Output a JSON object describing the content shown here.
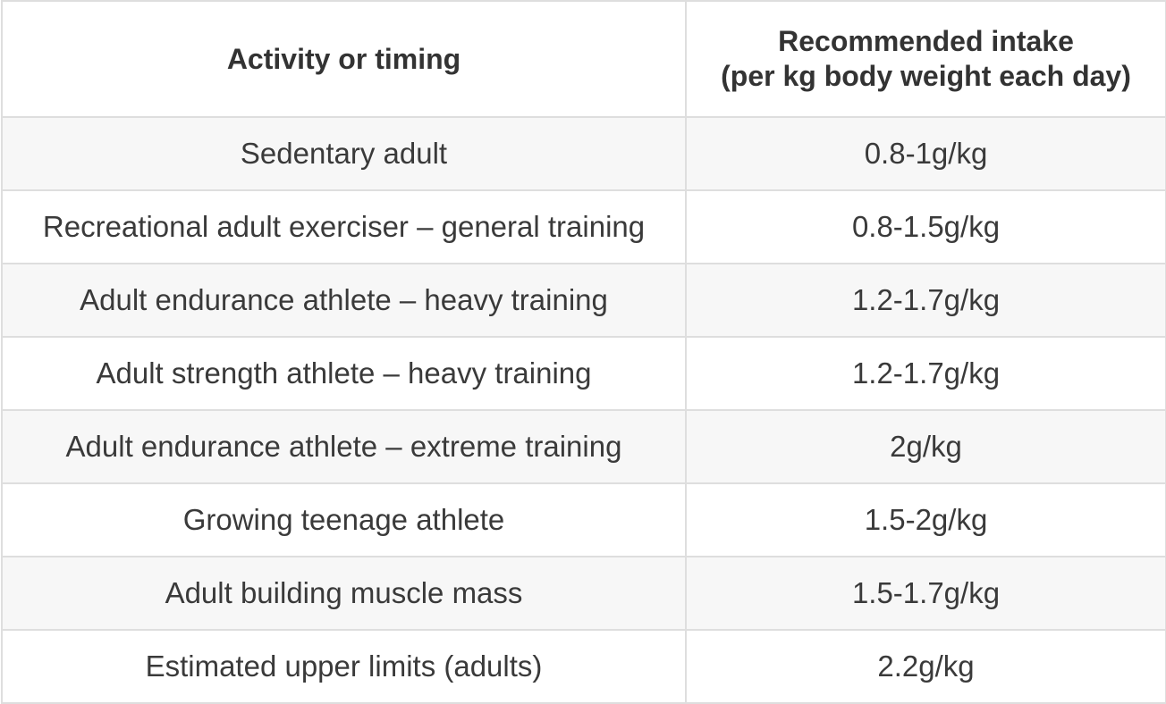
{
  "table": {
    "headers": {
      "activity": "Activity or timing",
      "intake_line1": "Recommended intake",
      "intake_line2": "(per kg body weight each day)"
    },
    "rows": [
      {
        "activity": "Sedentary adult",
        "intake": "0.8-1g/kg"
      },
      {
        "activity": "Recreational adult exerciser – general training",
        "intake": "0.8-1.5g/kg"
      },
      {
        "activity": "Adult endurance athlete – heavy training",
        "intake": "1.2-1.7g/kg"
      },
      {
        "activity": "Adult strength athlete – heavy training",
        "intake": "1.2-1.7g/kg"
      },
      {
        "activity": "Adult endurance athlete – extreme training",
        "intake": "2g/kg"
      },
      {
        "activity": "Growing teenage athlete",
        "intake": "1.5-2g/kg"
      },
      {
        "activity": "Adult building muscle mass",
        "intake": "1.5-1.7g/kg"
      },
      {
        "activity": "Estimated upper limits (adults)",
        "intake": "2.2g/kg"
      }
    ]
  }
}
